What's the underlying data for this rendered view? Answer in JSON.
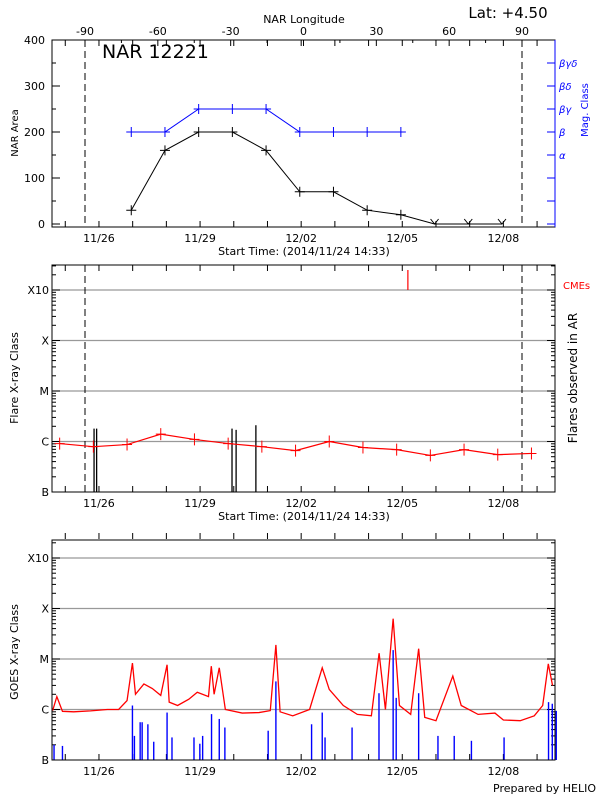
{
  "footer": "Prepared by HELIO",
  "colors": {
    "area": "#000000",
    "mag_class": "#0000ff",
    "flares": "#ff0000",
    "cmes": "#ff0000",
    "goes_flux": "#ff0000",
    "goes_events": "#0000ff",
    "grid": "#999999"
  },
  "chart_data": [
    {
      "type": "line",
      "title": "NAR 12221",
      "annotation": "Lat:  +4.50",
      "xlabel": "Start Time: (2014/11/24 14:33)",
      "xrange": [
        "2014-11-24 14:33",
        "2014-12-09 11:00"
      ],
      "xticks": [
        "11/26",
        "11/29",
        "12/02",
        "12/05",
        "12/08"
      ],
      "x2label": "NAR Longitude",
      "x2ticks": [
        -90,
        -60,
        -30,
        0,
        30,
        60,
        90
      ],
      "limb_longitudes": [
        -90,
        90
      ],
      "ylabel": "NAR Area",
      "ylim": [
        0,
        400
      ],
      "yticks": [
        0,
        100,
        200,
        300,
        400
      ],
      "y2label": "Mag. Class",
      "y2ticks": [
        "α",
        "β",
        "βγ",
        "βδ",
        "βγδ"
      ],
      "series": [
        {
          "kind": "area",
          "x": [
            "2014-11-26 23:00",
            "2014-11-27 23:00",
            "2014-11-28 23:00",
            "2014-11-29 23:00",
            "2014-11-30 23:00",
            "2014-12-01 23:00",
            "2014-12-02 23:00",
            "2014-12-03 23:00",
            "2014-12-04 23:00",
            "2014-12-05 23:00",
            "2014-12-06 23:00",
            "2014-12-07 23:00"
          ],
          "values": [
            30,
            160,
            200,
            200,
            160,
            70,
            70,
            30,
            20,
            0,
            0,
            0
          ]
        },
        {
          "kind": "mag_class",
          "x": [
            "2014-11-26 23:00",
            "2014-11-27 23:00",
            "2014-11-28 23:00",
            "2014-11-29 23:00",
            "2014-11-30 23:00",
            "2014-12-01 23:00",
            "2014-12-02 23:00",
            "2014-12-03 23:00",
            "2014-12-04 23:00"
          ],
          "values": [
            "β",
            "β",
            "βγ",
            "βγ",
            "βγ",
            "β",
            "β",
            "β",
            "β"
          ]
        }
      ]
    },
    {
      "type": "line",
      "xlabel": "Start Time: (2014/11/24 14:33)",
      "xticks": [
        "11/26",
        "11/29",
        "12/02",
        "12/05",
        "12/08"
      ],
      "ylabel": "Flare X-ray Class",
      "y2label": "Flares observed in AR",
      "yticks": [
        "B",
        "C",
        "M",
        "X",
        "X10"
      ],
      "grid": true,
      "cme_label": "CMEs",
      "cmes": [
        "2014-12-05 04:00"
      ],
      "daily_flare_level": {
        "x": [
          "2014-11-24 20:00",
          "2014-11-25 20:00",
          "2014-11-26 20:00",
          "2014-11-27 20:00",
          "2014-11-28 20:00",
          "2014-11-29 20:00",
          "2014-11-30 20:00",
          "2014-12-01 20:00",
          "2014-12-02 20:00",
          "2014-12-03 20:00",
          "2014-12-04 20:00",
          "2014-12-05 20:00",
          "2014-12-06 20:00",
          "2014-12-07 20:00",
          "2014-12-08 20:00"
        ],
        "values": [
          "B9.1",
          "B7.9",
          "B8.7",
          "C1.4",
          "C1.1",
          "B9.1",
          "B7.9",
          "B6.6",
          "C1.0",
          "B7.6",
          "B6.9",
          "B5.3",
          "B6.9",
          "B5.5",
          "B5.8"
        ]
      },
      "flares": [
        {
          "x": "2014-11-25 20:30",
          "class": "C1.8"
        },
        {
          "x": "2014-11-25 22:20",
          "class": "C1.8"
        },
        {
          "x": "2014-11-29 22:45",
          "class": "C1.8"
        },
        {
          "x": "2014-11-30 01:40",
          "class": "C1.7"
        },
        {
          "x": "2014-11-30 15:45",
          "class": "C2.1"
        }
      ]
    },
    {
      "type": "line",
      "ylabel": "GOES X-ray Class",
      "xticks": [
        "11/26",
        "11/29",
        "12/02",
        "12/05",
        "12/08"
      ],
      "yticks": [
        "B",
        "C",
        "M",
        "X",
        "X10"
      ],
      "grid": true,
      "flux": [
        [
          "2014-11-24 15:00",
          "B9.5"
        ],
        [
          "2014-11-24 18:00",
          "C1.8"
        ],
        [
          "2014-11-24 22:00",
          "B9.2"
        ],
        [
          "2014-11-25 06:00",
          "B9.0"
        ],
        [
          "2014-11-25 18:00",
          "B9.4"
        ],
        [
          "2014-11-26 06:00",
          "C1.0"
        ],
        [
          "2014-11-26 14:00",
          "C1.0"
        ],
        [
          "2014-11-26 20:00",
          "C1.5"
        ],
        [
          "2014-11-26 23:50",
          "C8.3"
        ],
        [
          "2014-11-27 02:00",
          "C2.0"
        ],
        [
          "2014-11-27 08:00",
          "C3.2"
        ],
        [
          "2014-11-27 14:00",
          "C2.6"
        ],
        [
          "2014-11-27 20:00",
          "C1.9"
        ],
        [
          "2014-11-28 00:30",
          "C7.7"
        ],
        [
          "2014-11-28 02:00",
          "C1.4"
        ],
        [
          "2014-11-28 08:00",
          "C1.2"
        ],
        [
          "2014-11-28 16:00",
          "C1.6"
        ],
        [
          "2014-11-28 22:00",
          "C2.2"
        ],
        [
          "2014-11-29 06:00",
          "C1.8"
        ],
        [
          "2014-11-29 08:00",
          "C7.2"
        ],
        [
          "2014-11-29 10:00",
          "C2.0"
        ],
        [
          "2014-11-29 13:40",
          "C6.7"
        ],
        [
          "2014-11-29 18:00",
          "C1.0"
        ],
        [
          "2014-11-30 06:00",
          "B8.5"
        ],
        [
          "2014-11-30 18:00",
          "B8.7"
        ],
        [
          "2014-12-01 02:00",
          "B9.5"
        ],
        [
          "2014-12-01 06:00",
          "M1.9"
        ],
        [
          "2014-12-01 09:00",
          "B9.0"
        ],
        [
          "2014-12-01 18:00",
          "B7.5"
        ],
        [
          "2014-12-02 06:00",
          "C1.0"
        ],
        [
          "2014-12-02 15:00",
          "C6.7"
        ],
        [
          "2014-12-02 20:00",
          "C2.5"
        ],
        [
          "2014-12-03 06:00",
          "C1.2"
        ],
        [
          "2014-12-03 16:00",
          "B8.0"
        ],
        [
          "2014-12-04 02:00",
          "B7.5"
        ],
        [
          "2014-12-04 07:30",
          "M1.3"
        ],
        [
          "2014-12-04 12:00",
          "C1.0"
        ],
        [
          "2014-12-04 17:30",
          "M6.3"
        ],
        [
          "2014-12-04 22:00",
          "C1.2"
        ],
        [
          "2014-12-05 06:00",
          "B8.0"
        ],
        [
          "2014-12-05 11:40",
          "M1.6"
        ],
        [
          "2014-12-05 16:00",
          "B7.0"
        ],
        [
          "2014-12-06 00:00",
          "B6.0"
        ],
        [
          "2014-12-06 12:00",
          "C4.6"
        ],
        [
          "2014-12-06 18:00",
          "C1.2"
        ],
        [
          "2014-12-07 06:00",
          "B8.0"
        ],
        [
          "2014-12-07 18:00",
          "B8.5"
        ],
        [
          "2014-12-08 00:00",
          "B6.2"
        ],
        [
          "2014-12-08 12:00",
          "B6.0"
        ],
        [
          "2014-12-08 22:00",
          "B7.5"
        ],
        [
          "2014-12-09 04:00",
          "C1.2"
        ],
        [
          "2014-12-09 08:00",
          "C8.0"
        ],
        [
          "2014-12-09 11:00",
          "C3.0"
        ]
      ],
      "events": [
        [
          "2014-11-24 16:00",
          "B2.0"
        ],
        [
          "2014-11-24 22:00",
          "B1.9"
        ],
        [
          "2014-11-26 23:50",
          "C1.2"
        ],
        [
          "2014-11-27 01:15",
          "B3.0"
        ],
        [
          "2014-11-27 05:20",
          "B5.6"
        ],
        [
          "2014-11-27 06:45",
          "B5.6"
        ],
        [
          "2014-11-27 10:50",
          "B5.1"
        ],
        [
          "2014-11-27 15:00",
          "B2.3"
        ],
        [
          "2014-11-28 00:30",
          "B8.7"
        ],
        [
          "2014-11-28 04:00",
          "B2.8"
        ],
        [
          "2014-11-28 19:40",
          "B2.8"
        ],
        [
          "2014-11-28 23:50",
          "B2.1"
        ],
        [
          "2014-11-29 01:50",
          "B3.0"
        ],
        [
          "2014-11-29 08:10",
          "B8.1"
        ],
        [
          "2014-11-29 13:40",
          "B6.5"
        ],
        [
          "2014-11-29 17:40",
          "B4.4"
        ],
        [
          "2014-12-01 00:30",
          "B3.8"
        ],
        [
          "2014-12-01 06:00",
          "C3.6"
        ],
        [
          "2014-12-02 07:25",
          "B5.1"
        ],
        [
          "2014-12-02 15:00",
          "B8.7"
        ],
        [
          "2014-12-02 17:00",
          "B2.8"
        ],
        [
          "2014-12-03 12:15",
          "B4.4"
        ],
        [
          "2014-12-04 07:25",
          "C2.1"
        ],
        [
          "2014-12-04 17:30",
          "M1.5"
        ],
        [
          "2014-12-04 19:40",
          "C1.7"
        ],
        [
          "2014-12-05 11:40",
          "C2.1"
        ],
        [
          "2014-12-06 01:25",
          "B3.0"
        ],
        [
          "2014-12-06 13:00",
          "B3.0"
        ],
        [
          "2014-12-07 01:15",
          "B2.4"
        ],
        [
          "2014-12-08 00:30",
          "B2.8"
        ],
        [
          "2014-12-09 08:10",
          "C1.4"
        ],
        [
          "2014-12-09 10:50",
          "C1.3"
        ],
        [
          "2014-12-09 13:40",
          "B9.4"
        ]
      ]
    }
  ]
}
